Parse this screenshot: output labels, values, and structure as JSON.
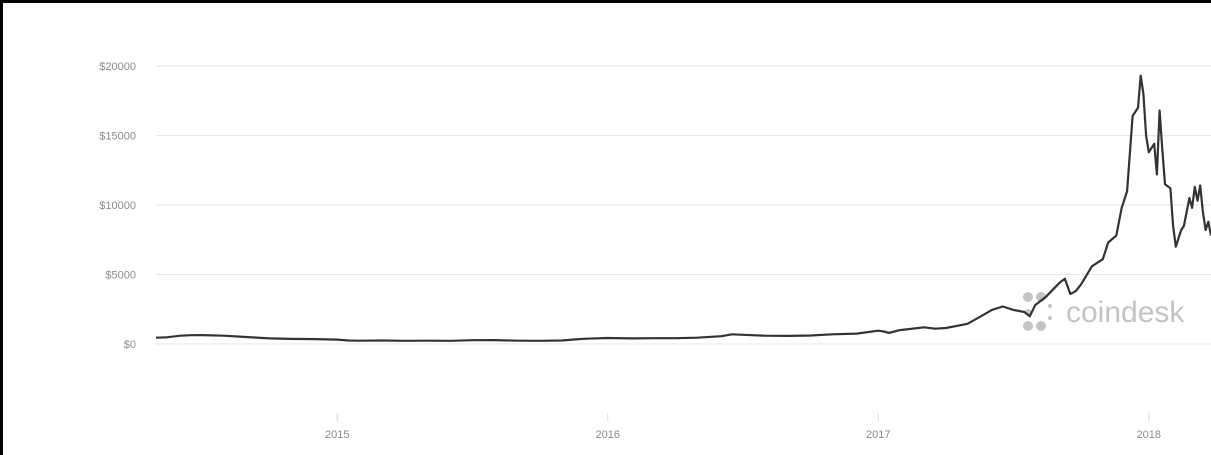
{
  "chart_data": {
    "type": "line",
    "title": "",
    "xlabel": "",
    "ylabel": "",
    "ylim": [
      -5000,
      20000
    ],
    "grid": true,
    "yticks": [
      {
        "value": 20000,
        "label": "$20000"
      },
      {
        "value": 15000,
        "label": "$15000"
      },
      {
        "value": 10000,
        "label": "$10000"
      },
      {
        "value": 5000,
        "label": "$5000"
      },
      {
        "value": 0,
        "label": "$0"
      }
    ],
    "xticks": [
      {
        "value": 2015.0,
        "label": "2015"
      },
      {
        "value": 2016.0,
        "label": "2016"
      },
      {
        "value": 2017.0,
        "label": "2017"
      },
      {
        "value": 2018.0,
        "label": "2018"
      }
    ],
    "xlim": [
      2014.33,
      2018.23
    ],
    "watermark": "coindesk",
    "series": [
      {
        "color": "#333333",
        "points": [
          [
            2014.33,
            450
          ],
          [
            2014.37,
            480
          ],
          [
            2014.42,
            600
          ],
          [
            2014.46,
            630
          ],
          [
            2014.5,
            640
          ],
          [
            2014.58,
            600
          ],
          [
            2014.67,
            500
          ],
          [
            2014.75,
            400
          ],
          [
            2014.83,
            370
          ],
          [
            2014.92,
            350
          ],
          [
            2015.0,
            320
          ],
          [
            2015.04,
            250
          ],
          [
            2015.08,
            240
          ],
          [
            2015.17,
            250
          ],
          [
            2015.25,
            230
          ],
          [
            2015.33,
            240
          ],
          [
            2015.42,
            230
          ],
          [
            2015.5,
            270
          ],
          [
            2015.58,
            280
          ],
          [
            2015.67,
            240
          ],
          [
            2015.75,
            230
          ],
          [
            2015.83,
            250
          ],
          [
            2015.88,
            330
          ],
          [
            2015.92,
            380
          ],
          [
            2016.0,
            430
          ],
          [
            2016.08,
            400
          ],
          [
            2016.17,
            420
          ],
          [
            2016.25,
            420
          ],
          [
            2016.33,
            450
          ],
          [
            2016.42,
            560
          ],
          [
            2016.46,
            700
          ],
          [
            2016.5,
            660
          ],
          [
            2016.58,
            600
          ],
          [
            2016.67,
            580
          ],
          [
            2016.75,
            610
          ],
          [
            2016.83,
            700
          ],
          [
            2016.92,
            750
          ],
          [
            2017.0,
            960
          ],
          [
            2017.02,
            900
          ],
          [
            2017.04,
            800
          ],
          [
            2017.08,
            1000
          ],
          [
            2017.17,
            1200
          ],
          [
            2017.21,
            1100
          ],
          [
            2017.25,
            1150
          ],
          [
            2017.29,
            1300
          ],
          [
            2017.33,
            1450
          ],
          [
            2017.38,
            2000
          ],
          [
            2017.42,
            2450
          ],
          [
            2017.46,
            2700
          ],
          [
            2017.5,
            2450
          ],
          [
            2017.54,
            2300
          ],
          [
            2017.56,
            2000
          ],
          [
            2017.58,
            2800
          ],
          [
            2017.62,
            3400
          ],
          [
            2017.67,
            4400
          ],
          [
            2017.69,
            4700
          ],
          [
            2017.71,
            3600
          ],
          [
            2017.73,
            3800
          ],
          [
            2017.75,
            4300
          ],
          [
            2017.79,
            5600
          ],
          [
            2017.83,
            6100
          ],
          [
            2017.85,
            7300
          ],
          [
            2017.88,
            7800
          ],
          [
            2017.9,
            9800
          ],
          [
            2017.92,
            11000
          ],
          [
            2017.94,
            16400
          ],
          [
            2017.96,
            17000
          ],
          [
            2017.97,
            19300
          ],
          [
            2017.98,
            18000
          ],
          [
            2017.99,
            15000
          ],
          [
            2018.0,
            13800
          ],
          [
            2018.02,
            14400
          ],
          [
            2018.03,
            12200
          ],
          [
            2018.04,
            16800
          ],
          [
            2018.05,
            14000
          ],
          [
            2018.06,
            11500
          ],
          [
            2018.08,
            11200
          ],
          [
            2018.09,
            8500
          ],
          [
            2018.1,
            7000
          ],
          [
            2018.12,
            8200
          ],
          [
            2018.13,
            8500
          ],
          [
            2018.15,
            10500
          ],
          [
            2018.16,
            9800
          ],
          [
            2018.17,
            11300
          ],
          [
            2018.18,
            10300
          ],
          [
            2018.19,
            11400
          ],
          [
            2018.2,
            9500
          ],
          [
            2018.21,
            8200
          ],
          [
            2018.22,
            8800
          ],
          [
            2018.23,
            7800
          ]
        ]
      }
    ]
  }
}
